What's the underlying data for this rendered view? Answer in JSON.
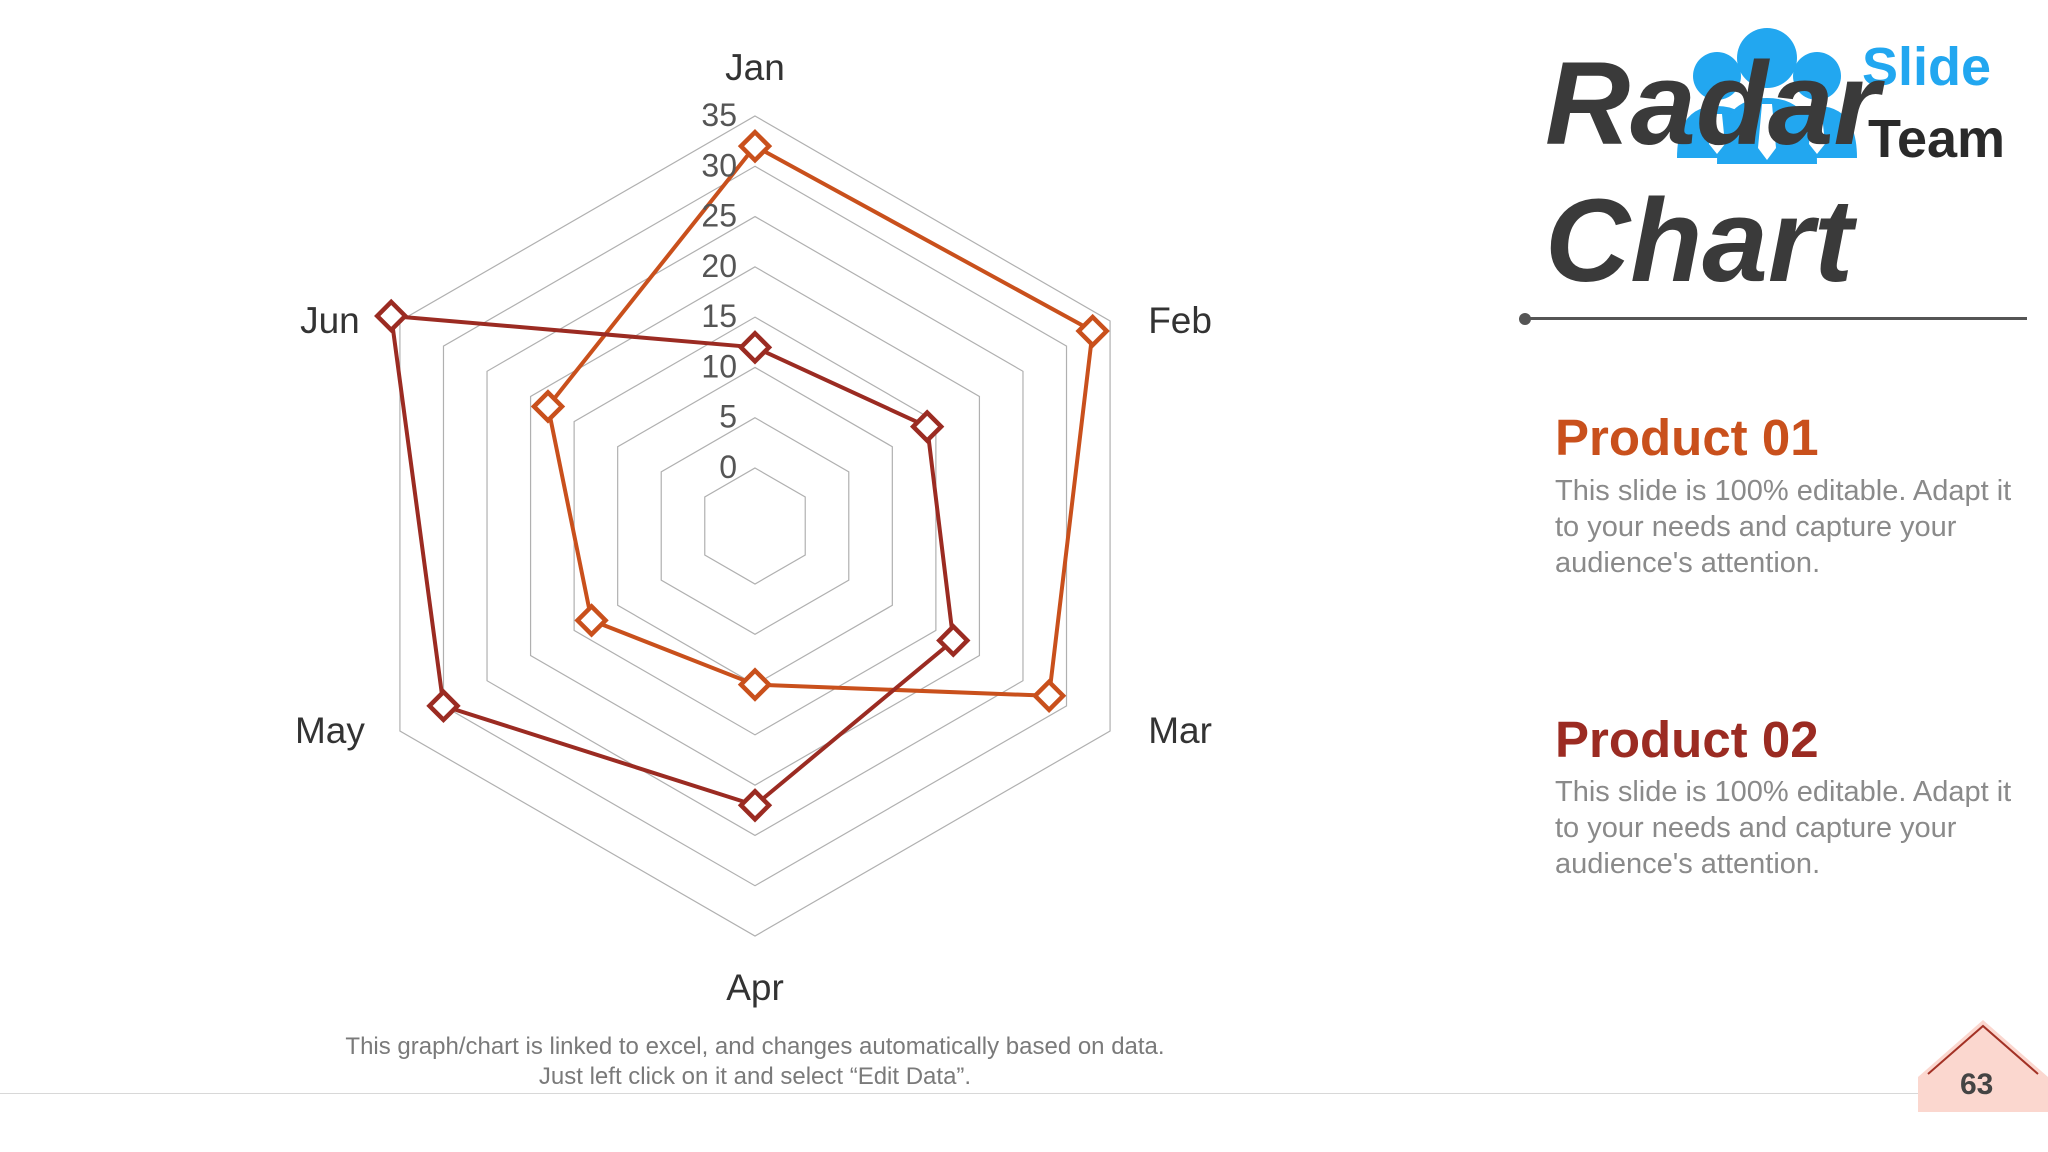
{
  "slide": {
    "title_line1": "Radar",
    "title_line2": "Chart",
    "page_number": "63",
    "caption": "This graph/chart is linked to excel, and changes automatically based on data. Just left click on it and select “Edit Data”.",
    "logo": {
      "word1": "Slide",
      "word2": "Team"
    },
    "products": [
      {
        "title": "Product 01",
        "color": "#c9501c",
        "description": "This slide is 100% editable. Adapt it to your needs and capture your audience's attention."
      },
      {
        "title": "Product 02",
        "color": "#9b2b22",
        "description": "This slide is 100% editable. Adapt it to your needs and capture your audience's attention."
      }
    ]
  },
  "chart_data": {
    "type": "radar",
    "categories": [
      "Jan",
      "Feb",
      "Mar",
      "Apr",
      "May",
      "Jun"
    ],
    "rlim": [
      0,
      35
    ],
    "rticks": [
      0,
      5,
      10,
      15,
      20,
      25,
      30,
      35
    ],
    "grid": true,
    "series": [
      {
        "color": "#c9501c",
        "values": [
          32,
          33,
          28,
          10,
          13,
          18
        ]
      },
      {
        "color": "#9b2b22",
        "values": [
          12,
          14,
          17,
          22,
          30,
          36
        ]
      }
    ]
  },
  "colors": {
    "grid": "#b0b0b0",
    "label": "#333333",
    "tick": "#555555",
    "logo_blue": "#22a7f0"
  }
}
